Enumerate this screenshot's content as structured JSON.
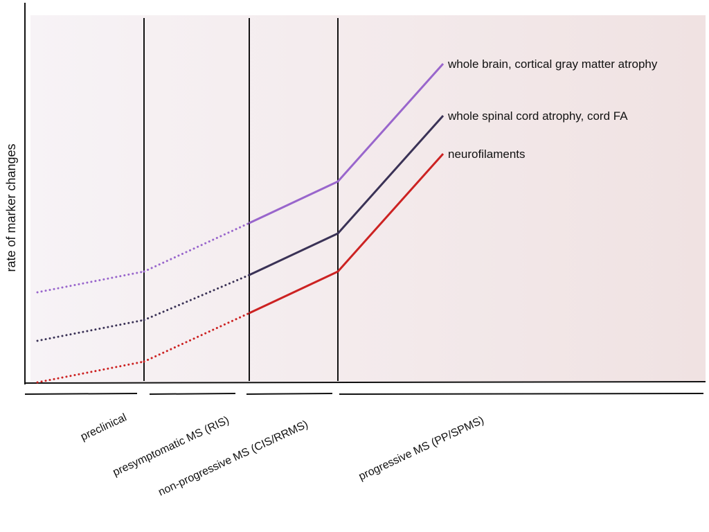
{
  "chart_data": {
    "type": "line",
    "title": "",
    "xlabel": "",
    "ylabel": "rate of marker changes",
    "phases": [
      "preclinical",
      "presymptomatic MS (RIS)",
      "non-progressive MS (CIS/RRMS)",
      "progressive MS (PP/SPMS)"
    ],
    "x": [
      0,
      1,
      2,
      3,
      4
    ],
    "ylim": [
      0,
      10
    ],
    "grid": false,
    "series": [
      {
        "name": "whole brain, cortical gray matter atrophy",
        "color": "#9966cc",
        "values": [
          2.6,
          3.2,
          4.6,
          5.8,
          9.2
        ],
        "style": [
          "dotted",
          "dotted",
          "solid",
          "solid"
        ]
      },
      {
        "name": "whole spinal cord atrophy, cord FA",
        "color": "#3a3256",
        "values": [
          1.2,
          1.8,
          3.1,
          4.3,
          7.7
        ],
        "style": [
          "dotted",
          "dotted",
          "solid",
          "solid"
        ]
      },
      {
        "name": "neurofilaments",
        "color": "#cc2222",
        "values": [
          0.0,
          0.6,
          2.0,
          3.2,
          6.6
        ],
        "style": [
          "dotted",
          "dotted",
          "solid",
          "solid"
        ]
      }
    ]
  }
}
